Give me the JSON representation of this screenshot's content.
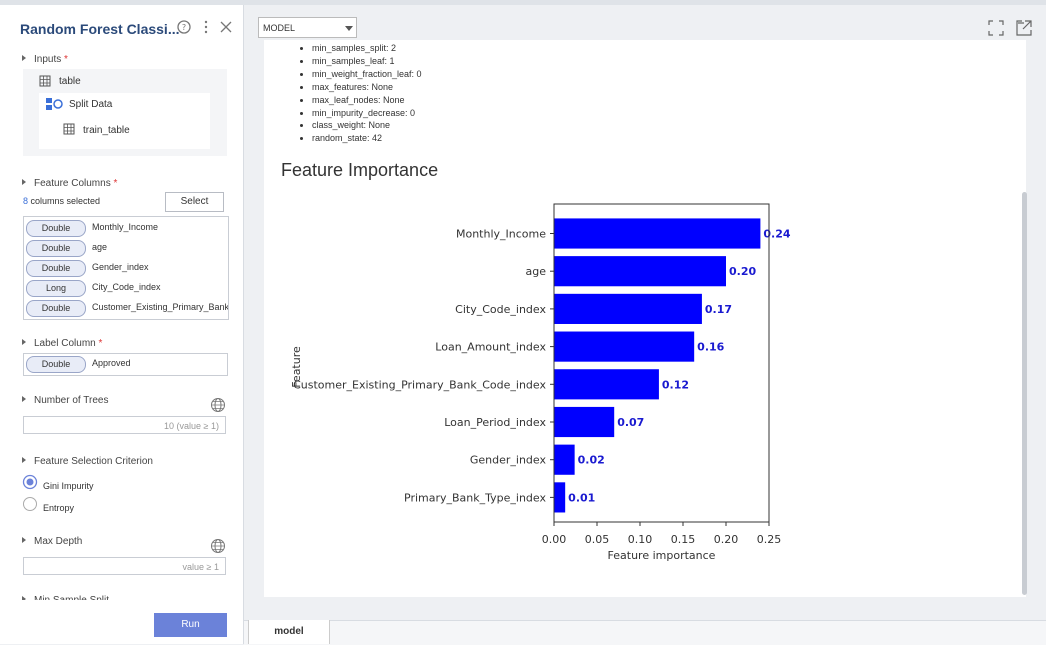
{
  "sidebar": {
    "title": "Random Forest Classi...",
    "required_mark": "*",
    "inputs": {
      "label": "Inputs",
      "table": "table",
      "split": "Split Data",
      "train_table": "train_table"
    },
    "feature_columns": {
      "label": "Feature Columns",
      "count": "8",
      "count_text": "columns selected",
      "select_button": "Select",
      "columns": [
        {
          "type": "Double",
          "name": "Monthly_Income"
        },
        {
          "type": "Double",
          "name": "age"
        },
        {
          "type": "Double",
          "name": "Gender_index"
        },
        {
          "type": "Long",
          "name": "City_Code_index"
        },
        {
          "type": "Double",
          "name": "Customer_Existing_Primary_Bank_Code_index"
        }
      ]
    },
    "label_column": {
      "label": "Label Column",
      "type": "Double",
      "name": "Approved"
    },
    "number_of_trees": {
      "label": "Number of Trees",
      "placeholder": "10 (value ≥ 1)"
    },
    "criterion": {
      "label": "Feature Selection Criterion",
      "options": [
        "Gini Impurity",
        "Entropy"
      ]
    },
    "max_depth": {
      "label": "Max Depth",
      "placeholder": "value ≥ 1"
    },
    "min_sample_split": {
      "label": "Min Sample Split"
    },
    "run_button": "Run"
  },
  "main": {
    "dropdown": "MODEL",
    "params": [
      "min_samples_split: 2",
      "min_samples_leaf: 1",
      "min_weight_fraction_leaf: 0",
      "max_features: None",
      "max_leaf_nodes: None",
      "min_impurity_decrease: 0",
      "class_weight: None",
      "random_state: 42"
    ],
    "tab": "model"
  },
  "chart_data": {
    "type": "barh",
    "title": "Feature Importance",
    "xlabel": "Feature importance",
    "ylabel": "Feature",
    "categories": [
      "Monthly_Income",
      "age",
      "City_Code_index",
      "Loan_Amount_index",
      "Customer_Existing_Primary_Bank_Code_index",
      "Loan_Period_index",
      "Gender_index",
      "Primary_Bank_Type_index"
    ],
    "values": [
      0.24,
      0.2,
      0.172,
      0.163,
      0.122,
      0.07,
      0.024,
      0.013
    ],
    "value_labels": [
      "0.24",
      "0.20",
      "0.17",
      "0.16",
      "0.12",
      "0.07",
      "0.02",
      "0.01"
    ],
    "color": "#0000ff",
    "label_color": "#1a1ad0",
    "xlim": [
      0,
      0.25
    ],
    "xticks": [
      {
        "value": 0,
        "label": "0.00"
      },
      {
        "value": 0.05,
        "label": "0.05"
      },
      {
        "value": 0.1,
        "label": "0.10"
      },
      {
        "value": 0.15,
        "label": "0.15"
      },
      {
        "value": 0.2,
        "label": "0.20"
      },
      {
        "value": 0.25,
        "label": "0.25"
      }
    ]
  }
}
